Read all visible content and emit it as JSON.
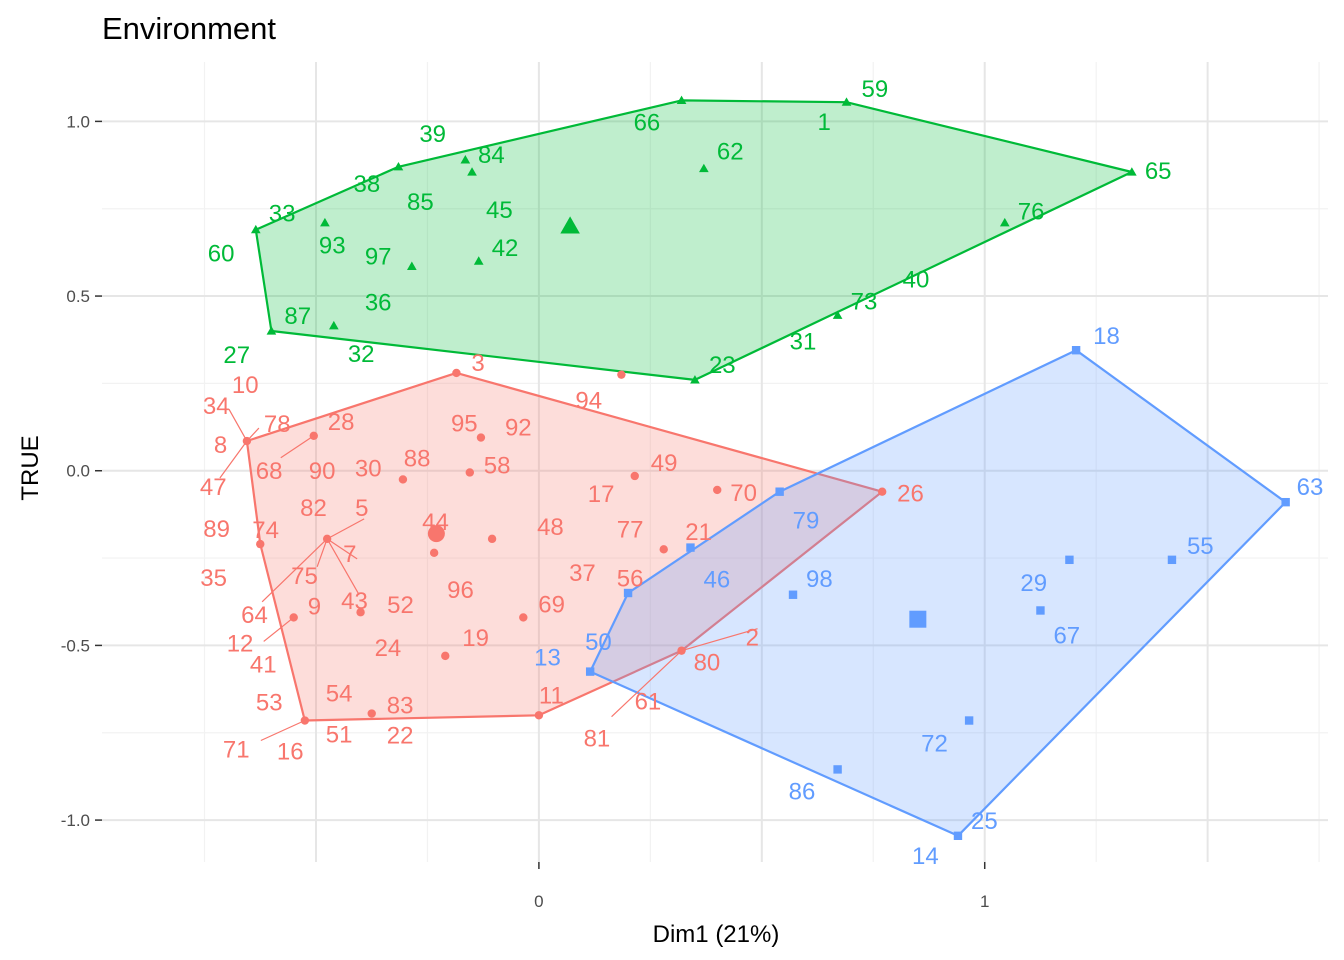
{
  "chart_data": {
    "type": "scatter",
    "title": "Environment",
    "xlabel": "Dim1 (21%)",
    "ylabel": "TRUE",
    "xlim": [
      -0.98,
      1.77
    ],
    "ylim": [
      -1.12,
      1.17
    ],
    "xticks": [
      0,
      1
    ],
    "yticks": [
      -1.0,
      -0.5,
      0.0,
      0.5,
      1.0
    ],
    "xtick_labels": [
      "0",
      "1"
    ],
    "ytick_labels": [
      "-1.0",
      "-0.5",
      "0.0",
      "0.5",
      "1.0"
    ],
    "grid": true,
    "colors": {
      "red": "#F8766D",
      "green": "#00BA38",
      "blue": "#619CFF"
    },
    "groups": [
      {
        "color": "red",
        "marker": "circle",
        "centroid": {
          "x": -0.23,
          "y": -0.18
        },
        "hull": [
          "10",
          "3",
          "26",
          "80",
          "11",
          "16",
          "35"
        ],
        "points": [
          {
            "label": "10",
            "x": -0.655,
            "y": 0.085
          },
          {
            "label": "34",
            "x": -0.655,
            "y": 0.085
          },
          {
            "label": "8",
            "x": -0.655,
            "y": 0.085
          },
          {
            "label": "78",
            "x": -0.655,
            "y": 0.085
          },
          {
            "label": "47",
            "x": -0.655,
            "y": 0.085
          },
          {
            "label": "28",
            "x": -0.505,
            "y": 0.1
          },
          {
            "label": "68",
            "x": -0.505,
            "y": 0.1
          },
          {
            "label": "90",
            "x": -0.505,
            "y": 0.1
          },
          {
            "label": "3",
            "x": -0.185,
            "y": 0.28
          },
          {
            "label": "94",
            "x": 0.185,
            "y": 0.275
          },
          {
            "label": "95",
            "x": -0.13,
            "y": 0.095
          },
          {
            "label": "92",
            "x": -0.13,
            "y": 0.095
          },
          {
            "label": "30",
            "x": -0.305,
            "y": -0.025
          },
          {
            "label": "88",
            "x": -0.155,
            "y": -0.005
          },
          {
            "label": "58",
            "x": -0.155,
            "y": -0.005
          },
          {
            "label": "44",
            "x": -0.235,
            "y": -0.235
          },
          {
            "label": "48",
            "x": -0.105,
            "y": -0.195
          },
          {
            "label": "96",
            "x": -0.235,
            "y": -0.235
          },
          {
            "label": "37",
            "x": -0.105,
            "y": -0.195
          },
          {
            "label": "52",
            "x": -0.235,
            "y": -0.235
          },
          {
            "label": "49",
            "x": 0.215,
            "y": -0.015
          },
          {
            "label": "17",
            "x": 0.215,
            "y": -0.015
          },
          {
            "label": "70",
            "x": 0.4,
            "y": -0.055
          },
          {
            "label": "21",
            "x": 0.4,
            "y": -0.055
          },
          {
            "label": "26",
            "x": 0.77,
            "y": -0.06
          },
          {
            "label": "77",
            "x": 0.28,
            "y": -0.225
          },
          {
            "label": "56",
            "x": 0.28,
            "y": -0.225
          },
          {
            "label": "89",
            "x": -0.625,
            "y": -0.21
          },
          {
            "label": "74",
            "x": -0.625,
            "y": -0.21
          },
          {
            "label": "35",
            "x": -0.625,
            "y": -0.21
          },
          {
            "label": "82",
            "x": -0.475,
            "y": -0.195
          },
          {
            "label": "5",
            "x": -0.475,
            "y": -0.195
          },
          {
            "label": "7",
            "x": -0.475,
            "y": -0.195
          },
          {
            "label": "75",
            "x": -0.475,
            "y": -0.195
          },
          {
            "label": "43",
            "x": -0.475,
            "y": -0.195
          },
          {
            "label": "64",
            "x": -0.475,
            "y": -0.195
          },
          {
            "label": "9",
            "x": -0.55,
            "y": -0.42
          },
          {
            "label": "12",
            "x": -0.55,
            "y": -0.42
          },
          {
            "label": "24",
            "x": -0.4,
            "y": -0.405
          },
          {
            "label": "19",
            "x": -0.21,
            "y": -0.53
          },
          {
            "label": "69",
            "x": -0.035,
            "y": -0.42
          },
          {
            "label": "2",
            "x": 0.32,
            "y": -0.515
          },
          {
            "label": "80",
            "x": 0.32,
            "y": -0.515
          },
          {
            "label": "61",
            "x": 0.32,
            "y": -0.515
          },
          {
            "label": "81",
            "x": 0.32,
            "y": -0.515
          },
          {
            "label": "11",
            "x": 0.0,
            "y": -0.7
          },
          {
            "label": "41",
            "x": -0.525,
            "y": -0.715
          },
          {
            "label": "53",
            "x": -0.525,
            "y": -0.715
          },
          {
            "label": "71",
            "x": -0.525,
            "y": -0.715
          },
          {
            "label": "16",
            "x": -0.525,
            "y": -0.715
          },
          {
            "label": "54",
            "x": -0.375,
            "y": -0.695
          },
          {
            "label": "83",
            "x": -0.375,
            "y": -0.695
          },
          {
            "label": "51",
            "x": -0.375,
            "y": -0.695
          },
          {
            "label": "22",
            "x": -0.375,
            "y": -0.695
          }
        ]
      },
      {
        "color": "green",
        "marker": "triangle",
        "centroid": {
          "x": 0.07,
          "y": 0.7
        },
        "hull": [
          "59",
          "65",
          "23",
          "27",
          "60",
          "38",
          "66"
        ],
        "points": [
          {
            "label": "59",
            "x": 0.69,
            "y": 1.055
          },
          {
            "label": "1",
            "x": 0.69,
            "y": 1.055
          },
          {
            "label": "66",
            "x": 0.32,
            "y": 1.06
          },
          {
            "label": "62",
            "x": 0.37,
            "y": 0.865
          },
          {
            "label": "65",
            "x": 1.33,
            "y": 0.855
          },
          {
            "label": "76",
            "x": 1.045,
            "y": 0.71
          },
          {
            "label": "39",
            "x": -0.165,
            "y": 0.89
          },
          {
            "label": "84",
            "x": -0.15,
            "y": 0.855
          },
          {
            "label": "85",
            "x": -0.15,
            "y": 0.855
          },
          {
            "label": "45",
            "x": -0.15,
            "y": 0.855
          },
          {
            "label": "38",
            "x": -0.315,
            "y": 0.87
          },
          {
            "label": "33",
            "x": -0.635,
            "y": 0.69
          },
          {
            "label": "60",
            "x": -0.635,
            "y": 0.69
          },
          {
            "label": "93",
            "x": -0.48,
            "y": 0.71
          },
          {
            "label": "97",
            "x": -0.285,
            "y": 0.585
          },
          {
            "label": "36",
            "x": -0.285,
            "y": 0.585
          },
          {
            "label": "42",
            "x": -0.135,
            "y": 0.6
          },
          {
            "label": "87",
            "x": -0.6,
            "y": 0.4
          },
          {
            "label": "27",
            "x": -0.6,
            "y": 0.4
          },
          {
            "label": "32",
            "x": -0.46,
            "y": 0.415
          },
          {
            "label": "23",
            "x": 0.35,
            "y": 0.26
          },
          {
            "label": "31",
            "x": 0.67,
            "y": 0.445
          },
          {
            "label": "73",
            "x": 0.67,
            "y": 0.445
          },
          {
            "label": "40",
            "x": 0.67,
            "y": 0.445
          }
        ]
      },
      {
        "color": "blue",
        "marker": "square",
        "centroid": {
          "x": 0.85,
          "y": -0.425
        },
        "hull": [
          "18",
          "63",
          "14",
          "13",
          "50",
          "79"
        ],
        "points": [
          {
            "label": "18",
            "x": 1.205,
            "y": 0.345
          },
          {
            "label": "63",
            "x": 1.675,
            "y": -0.09
          },
          {
            "label": "55",
            "x": 1.42,
            "y": -0.255
          },
          {
            "label": "29",
            "x": 1.19,
            "y": -0.255
          },
          {
            "label": "67",
            "x": 1.125,
            "y": -0.4
          },
          {
            "label": "79",
            "x": 0.54,
            "y": -0.06
          },
          {
            "label": "46",
            "x": 0.34,
            "y": -0.22
          },
          {
            "label": "98",
            "x": 0.57,
            "y": -0.355
          },
          {
            "label": "50",
            "x": 0.2,
            "y": -0.35
          },
          {
            "label": "13",
            "x": 0.115,
            "y": -0.575
          },
          {
            "label": "72",
            "x": 0.965,
            "y": -0.715
          },
          {
            "label": "86",
            "x": 0.67,
            "y": -0.855
          },
          {
            "label": "25",
            "x": 0.94,
            "y": -1.045
          },
          {
            "label": "14",
            "x": 0.94,
            "y": -1.045
          }
        ]
      }
    ]
  }
}
